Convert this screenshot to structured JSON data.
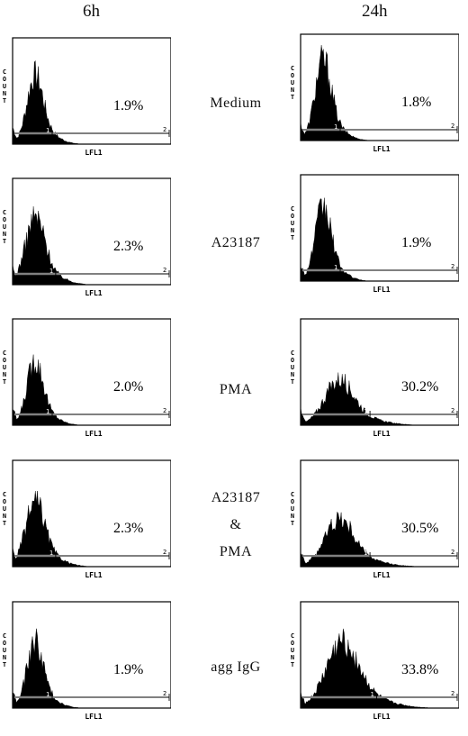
{
  "columns": {
    "left": "6h",
    "right": "24h"
  },
  "axis": {
    "y_label": "COUNT",
    "x_label": "LFL1",
    "gate1": "1",
    "gate2": "2"
  },
  "conditions": [
    {
      "label_lines": [
        "Medium"
      ]
    },
    {
      "label_lines": [
        "A23187"
      ]
    },
    {
      "label_lines": [
        "PMA"
      ]
    },
    {
      "label_lines": [
        "A23187",
        "&",
        "PMA"
      ]
    },
    {
      "label_lines": [
        "agg IgG"
      ]
    }
  ],
  "colors": {
    "histogram_fill": "#000000",
    "frame": "#000000",
    "background": "#ffffff"
  },
  "chart_data": [
    {
      "type": "area",
      "column": "6h",
      "condition": "Medium",
      "positive_percent": "1.9%",
      "distribution": {
        "center": 0.14,
        "spread": 0.05,
        "peak": 0.58
      }
    },
    {
      "type": "area",
      "column": "24h",
      "condition": "Medium",
      "positive_percent": "1.8%",
      "distribution": {
        "center": 0.14,
        "spread": 0.05,
        "peak": 0.68
      }
    },
    {
      "type": "area",
      "column": "6h",
      "condition": "A23187",
      "positive_percent": "2.3%",
      "distribution": {
        "center": 0.14,
        "spread": 0.06,
        "peak": 0.57
      }
    },
    {
      "type": "area",
      "column": "24h",
      "condition": "A23187",
      "positive_percent": "1.9%",
      "distribution": {
        "center": 0.14,
        "spread": 0.05,
        "peak": 0.62
      }
    },
    {
      "type": "area",
      "column": "6h",
      "condition": "PMA",
      "positive_percent": "2.0%",
      "distribution": {
        "center": 0.14,
        "spread": 0.05,
        "peak": 0.55
      }
    },
    {
      "type": "area",
      "column": "24h",
      "condition": "PMA",
      "positive_percent": "30.2%",
      "distribution": {
        "center": 0.24,
        "spread": 0.09,
        "peak": 0.38
      }
    },
    {
      "type": "area",
      "column": "6h",
      "condition": "A23187 & PMA",
      "positive_percent": "2.3%",
      "distribution": {
        "center": 0.14,
        "spread": 0.06,
        "peak": 0.54
      }
    },
    {
      "type": "area",
      "column": "24h",
      "condition": "A23187 & PMA",
      "positive_percent": "30.5%",
      "distribution": {
        "center": 0.24,
        "spread": 0.09,
        "peak": 0.4
      }
    },
    {
      "type": "area",
      "column": "6h",
      "condition": "agg IgG",
      "positive_percent": "1.9%",
      "distribution": {
        "center": 0.14,
        "spread": 0.05,
        "peak": 0.56
      }
    },
    {
      "type": "area",
      "column": "24h",
      "condition": "agg IgG",
      "positive_percent": "33.8%",
      "distribution": {
        "center": 0.26,
        "spread": 0.1,
        "peak": 0.55
      }
    }
  ]
}
